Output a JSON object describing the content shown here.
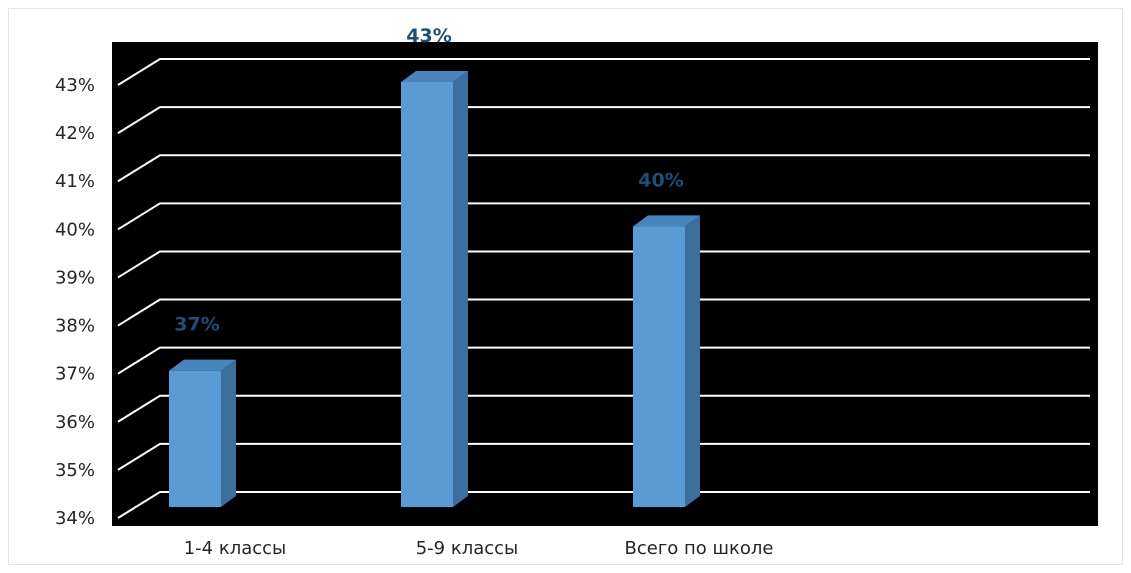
{
  "chart_data": {
    "type": "bar",
    "style": "3d-column",
    "title": "",
    "xlabel": "",
    "ylabel": "",
    "categories": [
      "1-4 классы",
      "5-9 классы",
      "Всего по школе"
    ],
    "values": [
      37,
      43,
      40
    ],
    "data_labels": [
      "37%",
      "43%",
      "40%"
    ],
    "ylim": [
      34,
      43
    ],
    "y_ticks": [
      34,
      35,
      36,
      37,
      38,
      39,
      40,
      41,
      42,
      43
    ],
    "y_tick_labels": [
      "34%",
      "35%",
      "36%",
      "37%",
      "38%",
      "39%",
      "40%",
      "41%",
      "42%",
      "43%"
    ],
    "grid": true,
    "legend": "none",
    "colors": {
      "plot_background": "#000000",
      "gridline": "#ffffff",
      "bar_front": "#5b9bd5",
      "bar_side": "#3c6e9f",
      "bar_top": "#4a84bd",
      "data_label": "#1f4e79",
      "tick_text": "#262626"
    }
  }
}
